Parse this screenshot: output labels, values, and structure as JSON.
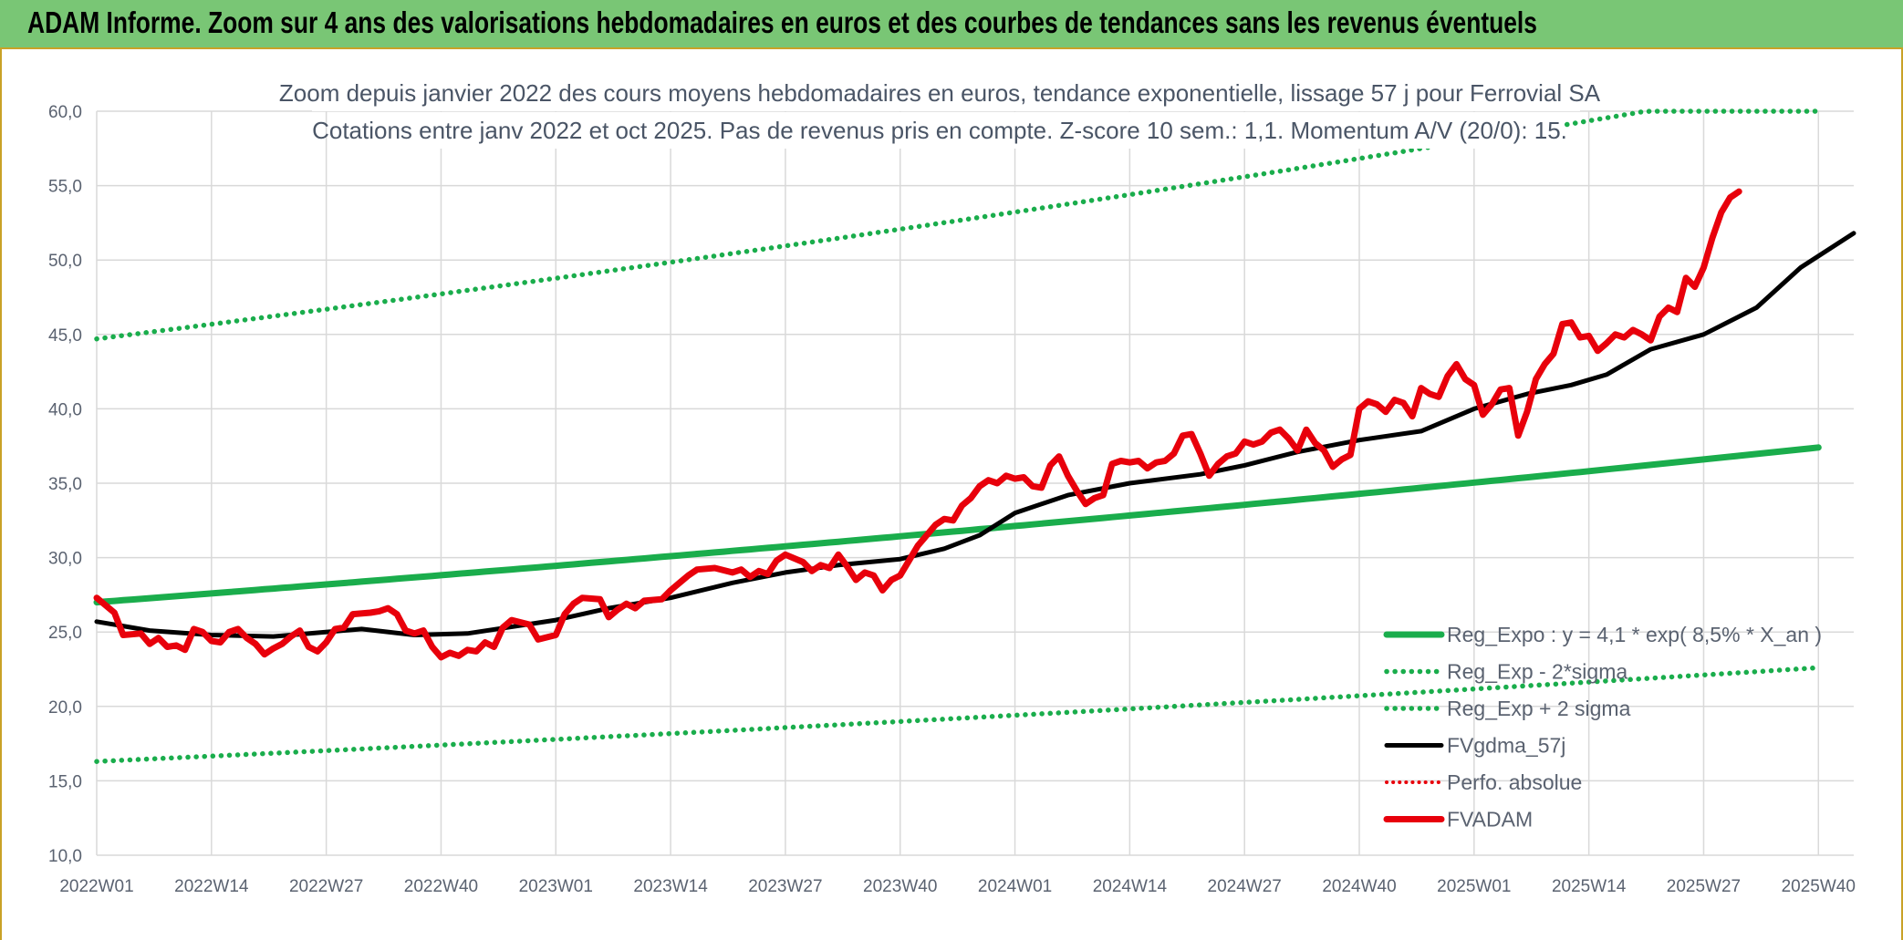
{
  "banner": {
    "title": "ADAM Informe. Zoom sur 4 ans des valorisations hebdomadaires en euros et des courbes de tendances sans les revenus éventuels"
  },
  "colors": {
    "banner_bg": "#79c675",
    "trend_green": "#1aad4c",
    "ma_black": "#000000",
    "price_red": "#e8000b",
    "grid": "#d9d9d9"
  },
  "chart_data": {
    "type": "line",
    "title_line1": "Zoom depuis janvier 2022 des cours moyens hebdomadaires en euros, tendance exponentielle, lissage 57 j pour Ferrovial SA",
    "title_line2": "Cotations entre janv 2022 et oct 2025. Pas de revenus pris en compte. Z-score 10 sem.: 1,1. Momentum A/V (20/0): 15.",
    "ylim": [
      10,
      60
    ],
    "yticks": [
      "10,0",
      "15,0",
      "20,0",
      "25,0",
      "30,0",
      "35,0",
      "40,0",
      "45,0",
      "50,0",
      "55,0",
      "60,0"
    ],
    "n_weeks": 196,
    "xtick_positions": [
      0,
      13,
      26,
      39,
      52,
      65,
      78,
      91,
      104,
      117,
      130,
      143,
      156,
      169,
      182,
      195
    ],
    "xticks": [
      "2022W01",
      "2022W14",
      "2022W27",
      "2022W40",
      "2023W01",
      "2023W14",
      "2023W27",
      "2023W40",
      "2024W01",
      "2024W14",
      "2024W27",
      "2024W40",
      "2025W01",
      "2025W14",
      "2025W27",
      "2025W40"
    ],
    "series": [
      {
        "name": "Reg_Expo : y = 4,1 * exp( 8,5% *  X_an )",
        "style": "solid-green",
        "start": 27.0,
        "end": 37.4
      },
      {
        "name": "Reg_Exp - 2*sigma",
        "style": "dotted-green",
        "start": 16.3,
        "end": 22.6
      },
      {
        "name": "Reg_Exp + 2 sigma",
        "style": "dotted-green",
        "start": 44.7,
        "end": 62.0,
        "clip_max": 60
      },
      {
        "name": "FVgdma_57j",
        "style": "solid-black",
        "points": [
          [
            0,
            25.7
          ],
          [
            6,
            25.1
          ],
          [
            13,
            24.8
          ],
          [
            20,
            24.7
          ],
          [
            30,
            25.2
          ],
          [
            36,
            24.8
          ],
          [
            42,
            24.9
          ],
          [
            52,
            25.8
          ],
          [
            58,
            26.6
          ],
          [
            65,
            27.3
          ],
          [
            72,
            28.3
          ],
          [
            78,
            29.0
          ],
          [
            84,
            29.5
          ],
          [
            91,
            29.9
          ],
          [
            96,
            30.6
          ],
          [
            100,
            31.5
          ],
          [
            104,
            33.0
          ],
          [
            110,
            34.2
          ],
          [
            117,
            35.0
          ],
          [
            125,
            35.6
          ],
          [
            130,
            36.2
          ],
          [
            136,
            37.1
          ],
          [
            143,
            37.9
          ],
          [
            150,
            38.5
          ],
          [
            156,
            40.0
          ],
          [
            162,
            41.0
          ],
          [
            167,
            41.6
          ],
          [
            171,
            42.3
          ],
          [
            176,
            44.0
          ],
          [
            182,
            45.0
          ],
          [
            188,
            46.8
          ],
          [
            193,
            49.5
          ],
          [
            199,
            51.8
          ]
        ]
      },
      {
        "name": "Perfo. absolue",
        "style": "dotted-red",
        "points": []
      },
      {
        "name": "FVADAM",
        "style": "solid-red",
        "points": [
          [
            0,
            27.3
          ],
          [
            2,
            26.3
          ],
          [
            3,
            24.8
          ],
          [
            5,
            24.9
          ],
          [
            6,
            24.2
          ],
          [
            7,
            24.6
          ],
          [
            8,
            24.0
          ],
          [
            9,
            24.1
          ],
          [
            10,
            23.8
          ],
          [
            11,
            25.2
          ],
          [
            12,
            25.0
          ],
          [
            13,
            24.4
          ],
          [
            14,
            24.3
          ],
          [
            15,
            25.0
          ],
          [
            16,
            25.2
          ],
          [
            17,
            24.6
          ],
          [
            18,
            24.2
          ],
          [
            19,
            23.5
          ],
          [
            20,
            23.9
          ],
          [
            21,
            24.2
          ],
          [
            22,
            24.7
          ],
          [
            23,
            25.1
          ],
          [
            24,
            24.0
          ],
          [
            25,
            23.7
          ],
          [
            26,
            24.3
          ],
          [
            27,
            25.2
          ],
          [
            28,
            25.3
          ],
          [
            29,
            26.2
          ],
          [
            31,
            26.3
          ],
          [
            32,
            26.4
          ],
          [
            33,
            26.6
          ],
          [
            34,
            26.2
          ],
          [
            35,
            25.1
          ],
          [
            36,
            24.9
          ],
          [
            37,
            25.1
          ],
          [
            38,
            24.0
          ],
          [
            39,
            23.3
          ],
          [
            40,
            23.6
          ],
          [
            41,
            23.4
          ],
          [
            42,
            23.8
          ],
          [
            43,
            23.7
          ],
          [
            44,
            24.3
          ],
          [
            45,
            24.0
          ],
          [
            46,
            25.3
          ],
          [
            47,
            25.8
          ],
          [
            49,
            25.5
          ],
          [
            50,
            24.5
          ],
          [
            52,
            24.8
          ],
          [
            53,
            26.2
          ],
          [
            54,
            26.9
          ],
          [
            55,
            27.3
          ],
          [
            57,
            27.2
          ],
          [
            58,
            26.0
          ],
          [
            59,
            26.5
          ],
          [
            60,
            26.9
          ],
          [
            61,
            26.6
          ],
          [
            62,
            27.1
          ],
          [
            64,
            27.2
          ],
          [
            65,
            27.8
          ],
          [
            66,
            28.3
          ],
          [
            67,
            28.8
          ],
          [
            68,
            29.2
          ],
          [
            70,
            29.3
          ],
          [
            72,
            29.0
          ],
          [
            73,
            29.2
          ],
          [
            74,
            28.7
          ],
          [
            75,
            29.1
          ],
          [
            76,
            28.9
          ],
          [
            77,
            29.8
          ],
          [
            78,
            30.2
          ],
          [
            80,
            29.7
          ],
          [
            81,
            29.1
          ],
          [
            82,
            29.5
          ],
          [
            83,
            29.3
          ],
          [
            84,
            30.2
          ],
          [
            85,
            29.4
          ],
          [
            86,
            28.5
          ],
          [
            87,
            29.0
          ],
          [
            88,
            28.8
          ],
          [
            89,
            27.8
          ],
          [
            90,
            28.5
          ],
          [
            91,
            28.8
          ],
          [
            92,
            29.8
          ],
          [
            93,
            30.8
          ],
          [
            94,
            31.5
          ],
          [
            95,
            32.2
          ],
          [
            96,
            32.6
          ],
          [
            97,
            32.5
          ],
          [
            98,
            33.5
          ],
          [
            99,
            34.0
          ],
          [
            100,
            34.8
          ],
          [
            101,
            35.2
          ],
          [
            102,
            35.0
          ],
          [
            103,
            35.5
          ],
          [
            104,
            35.3
          ],
          [
            105,
            35.4
          ],
          [
            106,
            34.8
          ],
          [
            107,
            34.7
          ],
          [
            108,
            36.2
          ],
          [
            109,
            36.8
          ],
          [
            110,
            35.5
          ],
          [
            111,
            34.5
          ],
          [
            112,
            33.6
          ],
          [
            113,
            34.0
          ],
          [
            114,
            34.2
          ],
          [
            115,
            36.3
          ],
          [
            116,
            36.5
          ],
          [
            117,
            36.4
          ],
          [
            118,
            36.5
          ],
          [
            119,
            36.0
          ],
          [
            120,
            36.4
          ],
          [
            121,
            36.5
          ],
          [
            122,
            37.0
          ],
          [
            123,
            38.2
          ],
          [
            124,
            38.3
          ],
          [
            125,
            37.0
          ],
          [
            126,
            35.5
          ],
          [
            127,
            36.3
          ],
          [
            128,
            36.8
          ],
          [
            129,
            37.0
          ],
          [
            130,
            37.8
          ],
          [
            131,
            37.6
          ],
          [
            132,
            37.8
          ],
          [
            133,
            38.4
          ],
          [
            134,
            38.6
          ],
          [
            135,
            38.0
          ],
          [
            136,
            37.2
          ],
          [
            137,
            38.6
          ],
          [
            138,
            37.7
          ],
          [
            139,
            37.2
          ],
          [
            140,
            36.1
          ],
          [
            141,
            36.6
          ],
          [
            142,
            36.9
          ],
          [
            143,
            40.0
          ],
          [
            144,
            40.5
          ],
          [
            145,
            40.3
          ],
          [
            146,
            39.8
          ],
          [
            147,
            40.6
          ],
          [
            148,
            40.4
          ],
          [
            149,
            39.5
          ],
          [
            150,
            41.4
          ],
          [
            151,
            41.0
          ],
          [
            152,
            40.8
          ],
          [
            153,
            42.2
          ],
          [
            154,
            43.0
          ],
          [
            155,
            42.0
          ],
          [
            156,
            41.6
          ],
          [
            157,
            39.6
          ],
          [
            158,
            40.3
          ],
          [
            159,
            41.3
          ],
          [
            160,
            41.4
          ],
          [
            161,
            38.2
          ],
          [
            162,
            39.8
          ],
          [
            163,
            42.0
          ],
          [
            164,
            43.0
          ],
          [
            165,
            43.7
          ],
          [
            166,
            45.7
          ],
          [
            167,
            45.8
          ],
          [
            168,
            44.8
          ],
          [
            169,
            44.9
          ],
          [
            170,
            43.9
          ],
          [
            171,
            44.4
          ],
          [
            172,
            45.0
          ],
          [
            173,
            44.8
          ],
          [
            174,
            45.3
          ],
          [
            175,
            45.0
          ],
          [
            176,
            44.6
          ],
          [
            177,
            46.2
          ],
          [
            178,
            46.8
          ],
          [
            179,
            46.5
          ],
          [
            180,
            48.8
          ],
          [
            181,
            48.2
          ],
          [
            182,
            49.5
          ],
          [
            183,
            51.5
          ],
          [
            184,
            53.2
          ],
          [
            185,
            54.2
          ],
          [
            186,
            54.6
          ]
        ]
      }
    ]
  }
}
